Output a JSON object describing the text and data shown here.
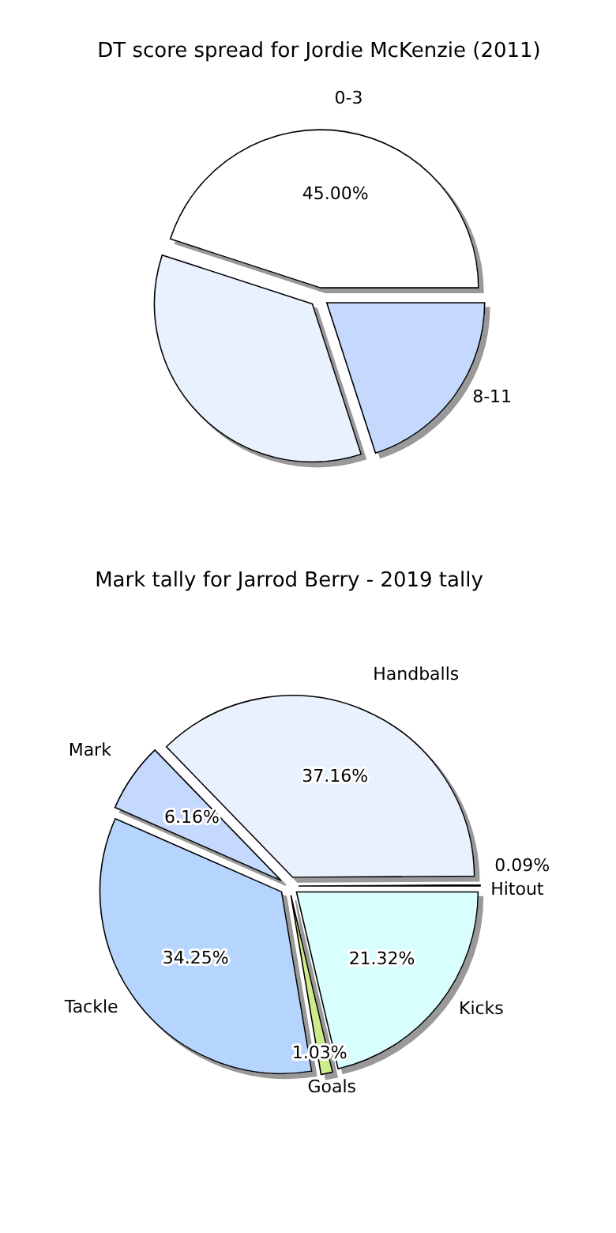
{
  "chart_data": [
    {
      "type": "pie",
      "title": "Mark tally for Jarrod Berry - 2019 tally",
      "categories": [
        "Hitout",
        "Handballs",
        "Mark",
        "Tackle",
        "Goals",
        "Kicks"
      ],
      "values": [
        0.09,
        37.16,
        6.16,
        34.25,
        1.03,
        21.32
      ],
      "value_labels": [
        "0.09%",
        "37.16%",
        "6.16%",
        "34.25%",
        "1.03%",
        "21.32%"
      ],
      "colors": [
        "#ffffff",
        "#eaf1fe",
        "#c5d8fe",
        "#b5d4fe",
        "#cfea8a",
        "#d9fefe"
      ]
    },
    {
      "type": "pie",
      "title": "DT score spread for Jordie McKenzie (2011)",
      "categories": [
        "0-3",
        null,
        "8-11"
      ],
      "values": [
        45,
        35,
        20
      ],
      "value_labels": [
        "45.00%",
        null,
        null
      ],
      "colors": [
        "#ffffff",
        "#eaf1fe",
        "#c5d8fe"
      ]
    }
  ]
}
